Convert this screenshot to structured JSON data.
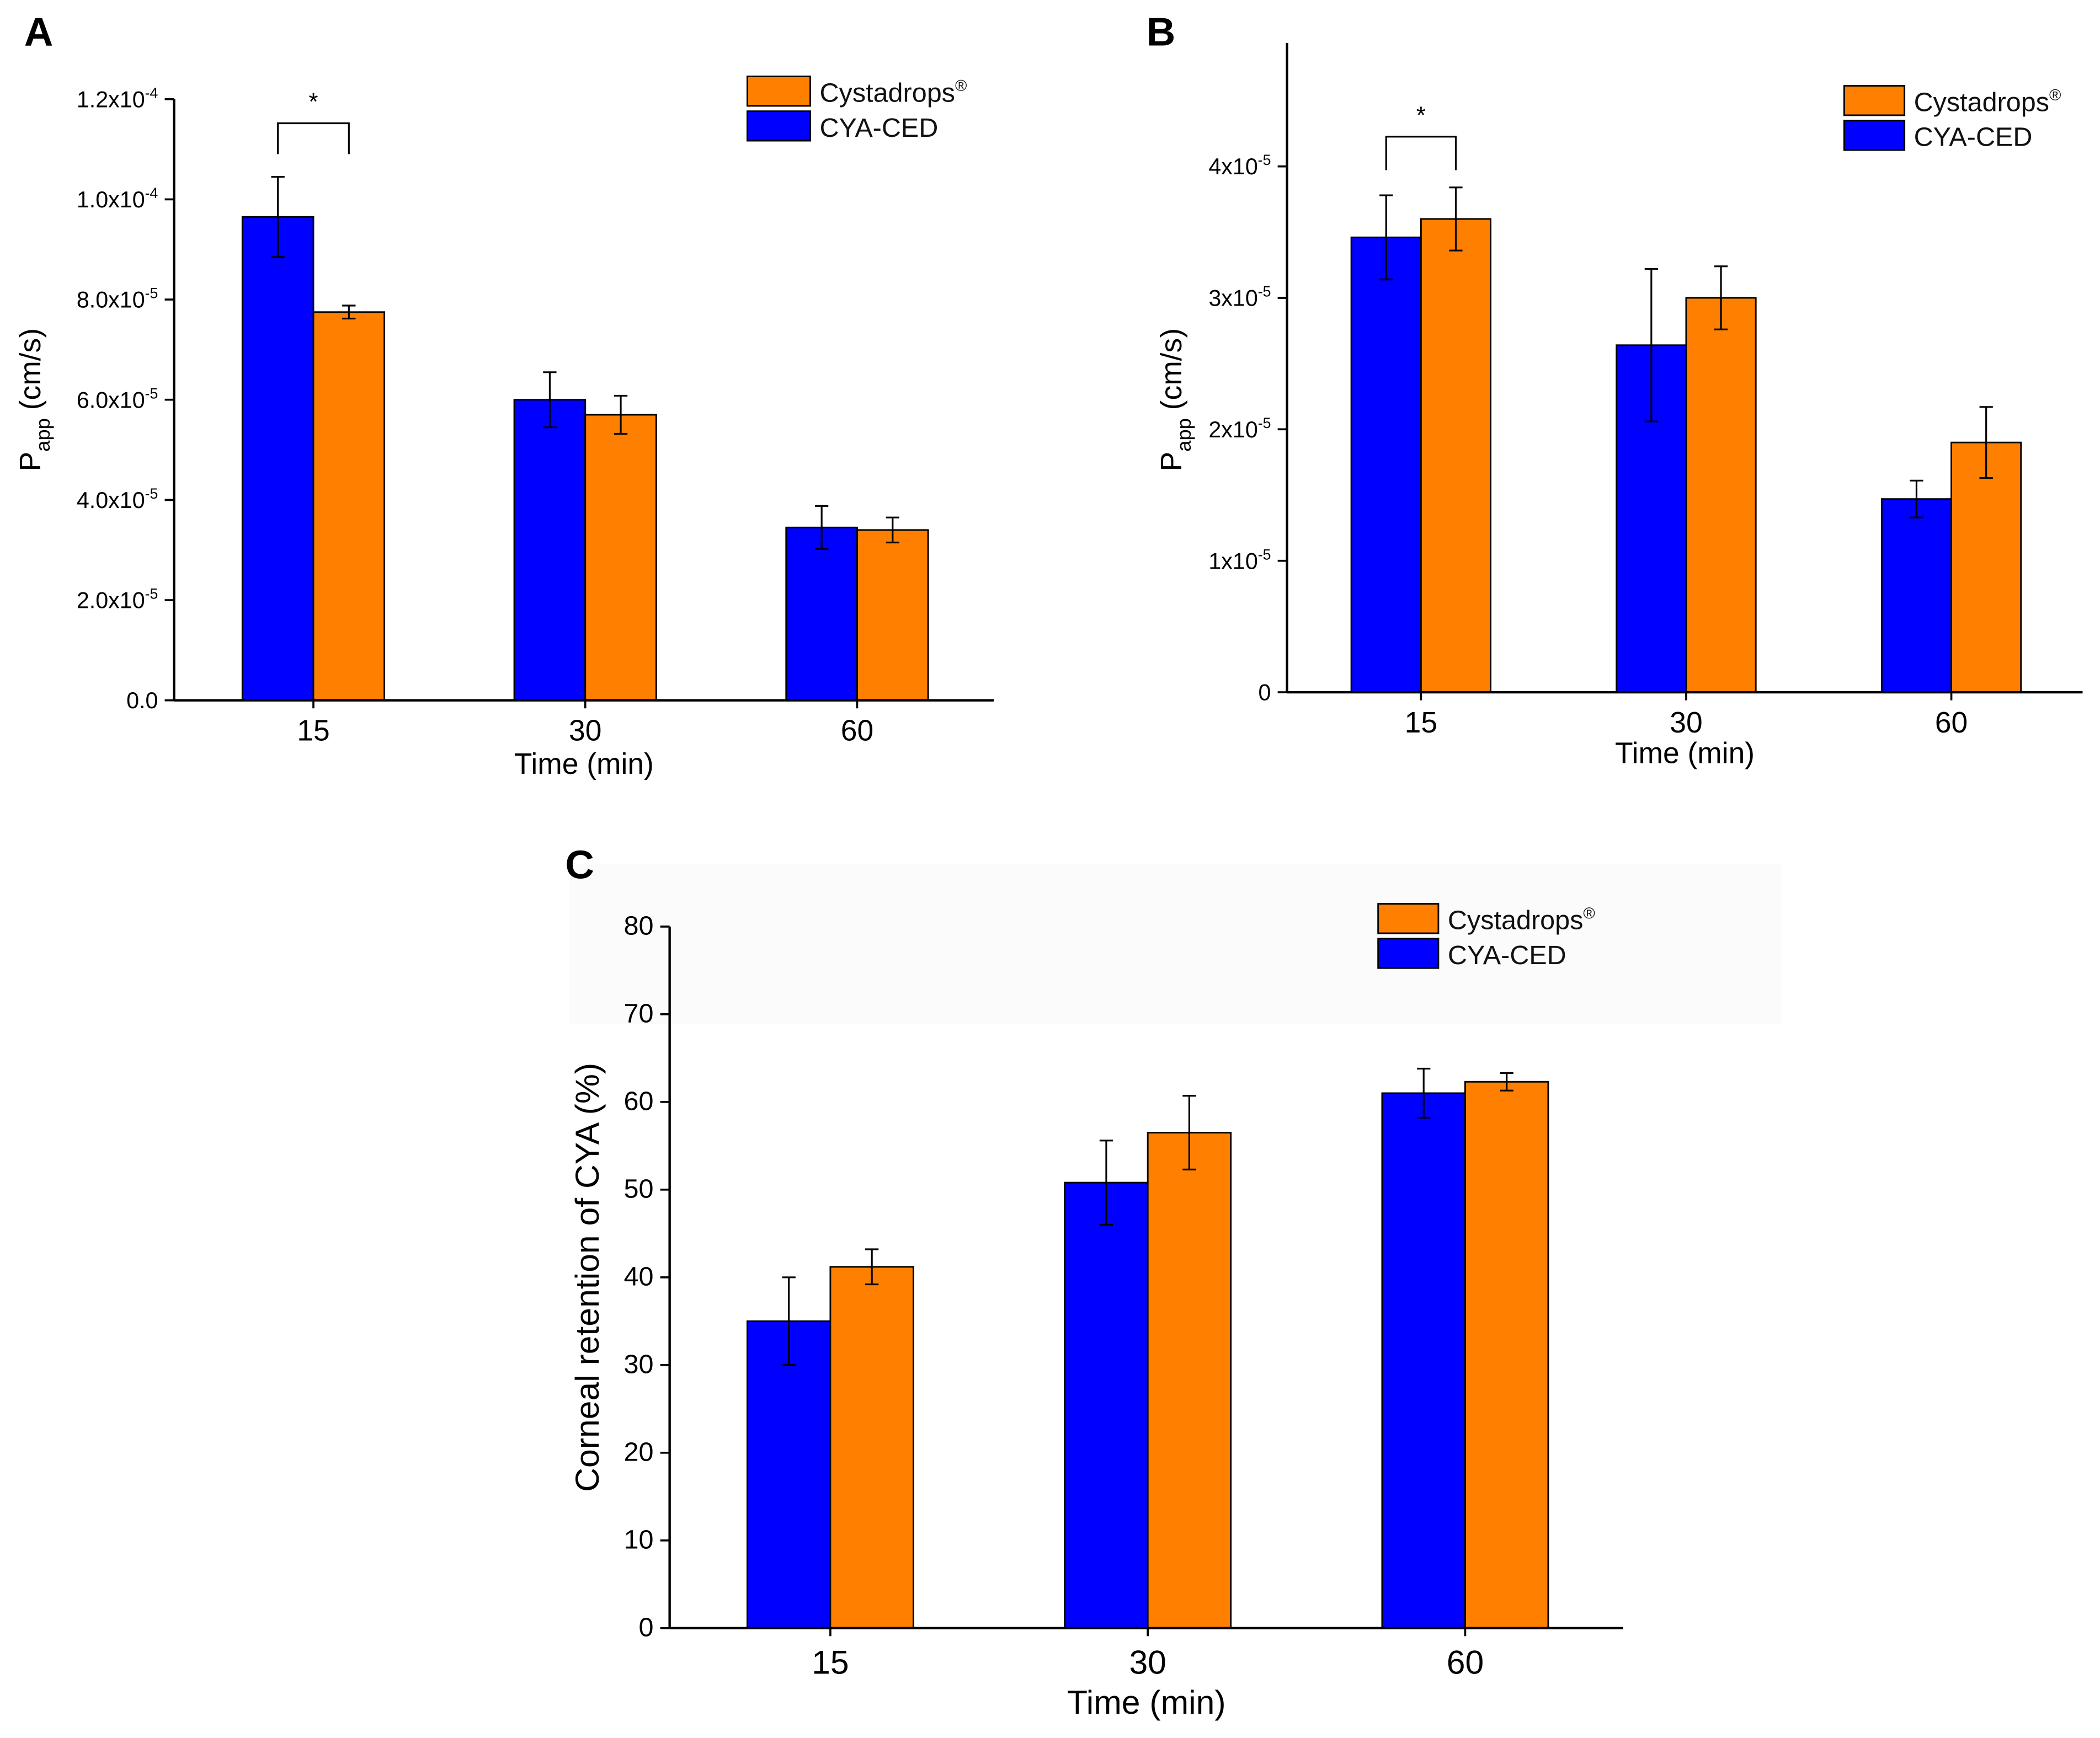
{
  "colors": {
    "cya_ced": "#0000FF",
    "cystadrops": "#FF8000"
  },
  "chart_data": [
    {
      "panel": "A",
      "type": "bar",
      "categories": [
        "15",
        "30",
        "60"
      ],
      "xlabel": "Time (min)",
      "ylabel": "P",
      "ylabel_sub": "app",
      "ylabel_unit": " (cm/s)",
      "ylim": [
        0,
        0.00012
      ],
      "yticks": [
        {
          "v": 0,
          "m": "0.0",
          "e": ""
        },
        {
          "v": 2e-05,
          "m": "2.0x10",
          "e": "-5"
        },
        {
          "v": 4e-05,
          "m": "4.0x10",
          "e": "-5"
        },
        {
          "v": 6e-05,
          "m": "6.0x10",
          "e": "-5"
        },
        {
          "v": 8e-05,
          "m": "8.0x10",
          "e": "-5"
        },
        {
          "v": 0.0001,
          "m": "1.0x10",
          "e": "-4"
        },
        {
          "v": 0.00012,
          "m": "1.2x10",
          "e": "-4"
        }
      ],
      "legend": [
        "Cystadrops",
        "CYA-CED"
      ],
      "legend_sup": "®",
      "series": [
        {
          "name": "CYA-CED",
          "values": [
            9.65e-05,
            6e-05,
            3.45e-05
          ],
          "errors": [
            8e-06,
            5.5e-06,
            4.3e-06
          ]
        },
        {
          "name": "Cystadrops",
          "values": [
            7.75e-05,
            5.7e-05,
            3.4e-05
          ],
          "errors": [
            1.3e-06,
            3.8e-06,
            2.5e-06
          ]
        }
      ],
      "annotation": {
        "text": "*",
        "between": "15 CYA-CED vs Cystadrops"
      }
    },
    {
      "panel": "B",
      "type": "bar",
      "categories": [
        "15",
        "30",
        "60"
      ],
      "xlabel": "Time (min)",
      "ylabel": "P",
      "ylabel_sub": "app",
      "ylabel_unit": " (cm/s)",
      "ylim": [
        0,
        4.45e-05
      ],
      "yticks": [
        {
          "v": 0,
          "m": "0",
          "e": ""
        },
        {
          "v": 1e-05,
          "m": "1x10",
          "e": "-5"
        },
        {
          "v": 2e-05,
          "m": "2x10",
          "e": "-5"
        },
        {
          "v": 3e-05,
          "m": "3x10",
          "e": "-5"
        },
        {
          "v": 4e-05,
          "m": "4x10",
          "e": "-5"
        }
      ],
      "legend": [
        "Cystadrops",
        "CYA-CED"
      ],
      "legend_sup": "®",
      "series": [
        {
          "name": "CYA-CED",
          "values": [
            3.46e-05,
            2.64e-05,
            1.47e-05
          ],
          "errors": [
            3.2e-06,
            5.8e-06,
            1.4e-06
          ]
        },
        {
          "name": "Cystadrops",
          "values": [
            3.6e-05,
            3e-05,
            1.9e-05
          ],
          "errors": [
            2.4e-06,
            2.4e-06,
            2.7e-06
          ]
        }
      ],
      "annotation": {
        "text": "*",
        "between": "15 CYA-CED vs Cystadrops"
      }
    },
    {
      "panel": "C",
      "type": "bar",
      "categories": [
        "15",
        "30",
        "60"
      ],
      "xlabel": "Time (min)",
      "ylabel": "Corneal retention of CYA (%)",
      "ylabel_sub": "",
      "ylabel_unit": "",
      "ylim": [
        0,
        80
      ],
      "yticks": [
        {
          "v": 0,
          "m": "0",
          "e": ""
        },
        {
          "v": 10,
          "m": "10",
          "e": ""
        },
        {
          "v": 20,
          "m": "20",
          "e": ""
        },
        {
          "v": 30,
          "m": "30",
          "e": ""
        },
        {
          "v": 40,
          "m": "40",
          "e": ""
        },
        {
          "v": 50,
          "m": "50",
          "e": ""
        },
        {
          "v": 60,
          "m": "60",
          "e": ""
        },
        {
          "v": 70,
          "m": "70",
          "e": ""
        },
        {
          "v": 80,
          "m": "80",
          "e": ""
        }
      ],
      "legend": [
        "Cystadrops",
        "CYA-CED"
      ],
      "legend_sup": "®",
      "series": [
        {
          "name": "CYA-CED",
          "values": [
            35,
            50.8,
            61
          ],
          "errors": [
            5,
            4.8,
            2.8
          ]
        },
        {
          "name": "Cystadrops",
          "values": [
            41.2,
            56.5,
            62.3
          ],
          "errors": [
            2,
            4.2,
            1
          ]
        }
      ]
    }
  ]
}
